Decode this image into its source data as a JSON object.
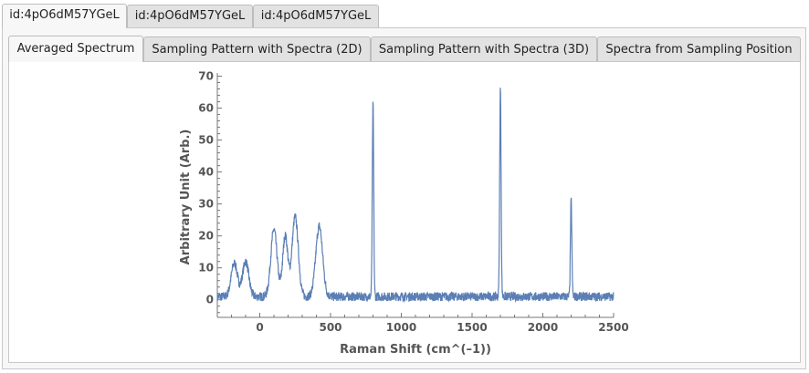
{
  "outer_tabs": [
    {
      "label": "id:4pO6dM57YGeL",
      "active": true
    },
    {
      "label": "id:4pO6dM57YGeL",
      "active": false
    },
    {
      "label": "id:4pO6dM57YGeL",
      "active": false
    }
  ],
  "inner_tabs": [
    {
      "label": "Averaged Spectrum",
      "active": true
    },
    {
      "label": "Sampling Pattern with Spectra (2D)",
      "active": false
    },
    {
      "label": "Sampling Pattern with Spectra (3D)",
      "active": false
    },
    {
      "label": "Spectra from Sampling Position",
      "active": false
    }
  ],
  "chart_data": {
    "type": "line",
    "title": "",
    "xlabel": "Raman Shift  (cm^(–1))",
    "ylabel": "Arbitrary Unit  (Arb.)",
    "xlim": [
      -300,
      2500
    ],
    "ylim": [
      -5.5,
      71
    ],
    "xticks": [
      0,
      500,
      1000,
      1500,
      2000,
      2500
    ],
    "yticks": [
      0,
      10,
      20,
      30,
      40,
      50,
      60,
      70
    ],
    "xtick_labels": [
      "0",
      "500",
      "1000",
      "1500",
      "2000",
      "2500"
    ],
    "ytick_labels": [
      "0",
      "10",
      "20",
      "30",
      "40",
      "50",
      "60",
      "70"
    ],
    "grid": false,
    "series_color": "#5b7fb5",
    "baseline": 1,
    "noise_amplitude": 1.4,
    "peaks": [
      {
        "center": -180,
        "height": 10.5,
        "width": 22
      },
      {
        "center": -100,
        "height": 11,
        "width": 22
      },
      {
        "center": 100,
        "height": 21,
        "width": 22
      },
      {
        "center": 180,
        "height": 19,
        "width": 18
      },
      {
        "center": 250,
        "height": 25,
        "width": 22
      },
      {
        "center": 420,
        "height": 22,
        "width": 24
      },
      {
        "center": 800,
        "height": 60,
        "width": 5
      },
      {
        "center": 1700,
        "height": 65,
        "width": 5
      },
      {
        "center": 2200,
        "height": 30,
        "width": 5
      }
    ]
  }
}
